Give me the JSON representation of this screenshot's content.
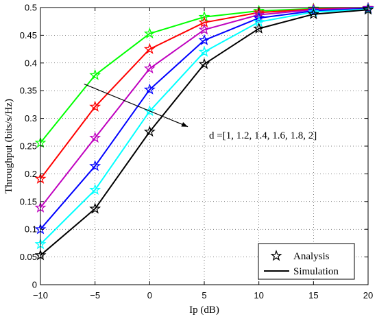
{
  "chart_data": {
    "type": "line",
    "xlabel": "Ip (dB)",
    "ylabel": "Throughput (bits/s/Hz)",
    "xlim": [
      -10,
      20
    ],
    "ylim": [
      0,
      0.5
    ],
    "x_ticks": [
      -10,
      -5,
      0,
      5,
      10,
      15,
      20
    ],
    "x_tick_labels": [
      "−10",
      "−5",
      "0",
      "5",
      "10",
      "15",
      "20"
    ],
    "y_ticks": [
      0,
      0.05,
      0.1,
      0.15,
      0.2,
      0.25,
      0.3,
      0.35,
      0.4,
      0.45,
      0.5
    ],
    "y_tick_labels": [
      "0",
      "0.05",
      "0.1",
      "0.15",
      "0.2",
      "0.25",
      "0.3",
      "0.35",
      "0.4",
      "0.45",
      "0.5"
    ],
    "grid": true,
    "x": [
      -10,
      -5,
      0,
      5,
      10,
      15,
      20
    ],
    "series": [
      {
        "color": "#00ff00",
        "values": [
          0.256,
          0.378,
          0.453,
          0.483,
          0.494,
          0.498,
          0.499
        ]
      },
      {
        "color": "#ff0000",
        "values": [
          0.191,
          0.321,
          0.425,
          0.473,
          0.491,
          0.497,
          0.499
        ]
      },
      {
        "color": "#bf00bf",
        "values": [
          0.139,
          0.265,
          0.39,
          0.46,
          0.487,
          0.496,
          0.499
        ]
      },
      {
        "color": "#0000ff",
        "values": [
          0.1,
          0.214,
          0.352,
          0.441,
          0.481,
          0.494,
          0.498
        ]
      },
      {
        "color": "#00ffff",
        "values": [
          0.073,
          0.171,
          0.313,
          0.42,
          0.474,
          0.492,
          0.497
        ]
      },
      {
        "color": "#000000",
        "values": [
          0.053,
          0.137,
          0.276,
          0.398,
          0.462,
          0.488,
          0.496
        ]
      }
    ],
    "annotation": {
      "text": "d =[1, 1.2,  1.4, 1.6, 1.8, 2]",
      "arrow_from": [
        -6.0,
        0.362
      ],
      "arrow_to": [
        3.5,
        0.285
      ]
    },
    "legend": {
      "position": "bottom-right",
      "entries": [
        {
          "label": "Analysis",
          "marker": "star"
        },
        {
          "label": "Simulation",
          "marker": "line"
        }
      ]
    }
  }
}
